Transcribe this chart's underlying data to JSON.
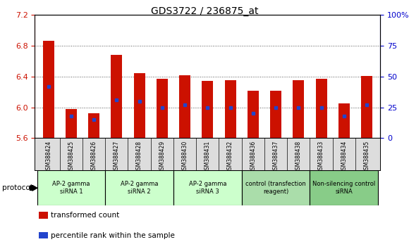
{
  "title": "GDS3722 / 236875_at",
  "samples": [
    "GSM388424",
    "GSM388425",
    "GSM388426",
    "GSM388427",
    "GSM388428",
    "GSM388429",
    "GSM388430",
    "GSM388431",
    "GSM388432",
    "GSM388436",
    "GSM388437",
    "GSM388438",
    "GSM388433",
    "GSM388434",
    "GSM388435"
  ],
  "transformed_count": [
    6.86,
    5.98,
    5.92,
    6.68,
    6.44,
    6.37,
    6.42,
    6.34,
    6.35,
    6.22,
    6.22,
    6.35,
    6.37,
    6.05,
    6.41
  ],
  "percentile_rank": [
    42,
    18,
    15,
    31,
    30,
    25,
    27,
    25,
    25,
    20,
    25,
    25,
    25,
    18,
    27
  ],
  "bar_bottom": 5.6,
  "ylim_left": [
    5.6,
    7.2
  ],
  "ylim_right": [
    0,
    100
  ],
  "yticks_left": [
    5.6,
    6.0,
    6.4,
    6.8,
    7.2
  ],
  "yticks_right": [
    0,
    25,
    50,
    75,
    100
  ],
  "bar_color": "#cc1100",
  "blue_color": "#2244cc",
  "groups": [
    {
      "label": "AP-2 gamma\nsiRNA 1",
      "indices": [
        0,
        1,
        2
      ],
      "color": "#ccffcc"
    },
    {
      "label": "AP-2 gamma\nsiRNA 2",
      "indices": [
        3,
        4,
        5
      ],
      "color": "#ccffcc"
    },
    {
      "label": "AP-2 gamma\nsiRNA 3",
      "indices": [
        6,
        7,
        8
      ],
      "color": "#ccffcc"
    },
    {
      "label": "control (transfection\nreagent)",
      "indices": [
        9,
        10,
        11
      ],
      "color": "#aaddaa"
    },
    {
      "label": "Non-silencing control\nsiRNA",
      "indices": [
        12,
        13,
        14
      ],
      "color": "#88cc88"
    }
  ],
  "protocol_label": "protocol",
  "legend_transformed": "transformed count",
  "legend_percentile": "percentile rank within the sample",
  "title_fontsize": 10,
  "axis_label_color_left": "#cc1100",
  "axis_label_color_right": "#0000cc",
  "tick_fontsize": 8,
  "sample_bg": "#dddddd"
}
